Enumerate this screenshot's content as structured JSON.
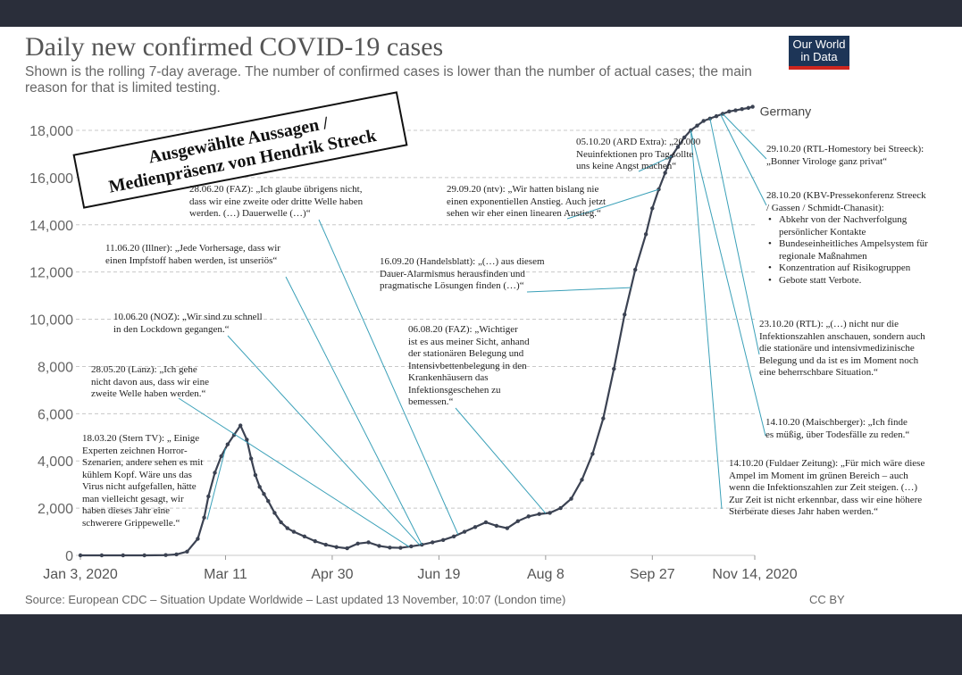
{
  "title": "Daily new confirmed COVID-19 cases",
  "subtitle": "Shown is the rolling 7-day average. The number of confirmed cases is lower than the number of actual cases; the main reason for that is limited testing.",
  "logo": {
    "line1": "Our World",
    "line2": "in Data"
  },
  "stamp": {
    "line1": "Ausgewählte Aussagen /",
    "line2": "Medienpräsenz von Hendrik Streck"
  },
  "source": "Source: European CDC – Situation Update Worldwide – Last updated 13 November, 10:07 (London time)",
  "license": "CC BY",
  "colors": {
    "line": "#3b4252",
    "leader": "#3aa0b8",
    "grid": "#c8c8c8"
  },
  "chart_data": {
    "type": "line",
    "title": "Daily new confirmed COVID-19 cases",
    "series": [
      {
        "name": "Germany",
        "x_days": [
          0,
          10,
          20,
          30,
          40,
          45,
          50,
          55,
          58,
          60,
          63,
          66,
          69,
          72,
          75,
          78,
          80,
          82,
          84,
          86,
          88,
          91,
          94,
          97,
          100,
          105,
          110,
          115,
          120,
          125,
          130,
          135,
          140,
          145,
          150,
          155,
          160,
          165,
          170,
          175,
          180,
          185,
          190,
          195,
          200,
          205,
          210,
          215,
          220,
          225,
          230,
          235,
          240,
          245,
          250,
          255,
          260,
          265,
          268,
          271,
          274,
          277,
          280,
          283,
          286,
          289,
          292,
          295,
          298,
          301,
          304,
          307,
          310,
          313,
          315
        ],
        "values": [
          0,
          0,
          0,
          0,
          10,
          40,
          160,
          700,
          1600,
          2500,
          3500,
          4200,
          4700,
          5100,
          5500,
          4900,
          4100,
          3400,
          2900,
          2600,
          2300,
          1800,
          1400,
          1150,
          1000,
          800,
          600,
          450,
          350,
          300,
          500,
          550,
          400,
          330,
          320,
          380,
          450,
          550,
          650,
          800,
          1000,
          1200,
          1400,
          1250,
          1150,
          1450,
          1650,
          1750,
          1800,
          2000,
          2400,
          3200,
          4300,
          5800,
          7900,
          10200,
          12100,
          13600,
          14700,
          15500,
          16200,
          16900,
          17300,
          17700,
          18000,
          18200,
          18400,
          18500,
          18600,
          18700,
          18800,
          18850,
          18900,
          18950,
          19000
        ]
      }
    ],
    "series_label": "Germany",
    "x_ticks": [
      "Jan 3, 2020",
      "Mar 11",
      "Apr 30",
      "Jun 19",
      "Aug 8",
      "Sep 27",
      "Nov 14, 2020"
    ],
    "x_tick_days": [
      0,
      68,
      118,
      168,
      218,
      268,
      316
    ],
    "y_ticks": [
      "0",
      "2,000",
      "4,000",
      "6,000",
      "8,000",
      "10,000",
      "12,000",
      "14,000",
      "16,000",
      "18,000"
    ],
    "ylim": [
      0,
      18000
    ],
    "xlim_days": [
      0,
      316
    ],
    "annotations": [
      {
        "id": "a1",
        "date_day": 68,
        "lines": [
          "18.03.20 (Stern TV): „ Einige",
          "Experten zeichnen Horror-",
          "Szenarien, andere sehen es mit",
          "kühlem Kopf.  Wäre uns das",
          "Virus nicht aufgefallen, hätte",
          "man vielleicht gesagt, wir",
          "haben dieses Jahr eine",
          "schwerere Grippewelle.“"
        ]
      },
      {
        "id": "a2",
        "date_day": 154,
        "lines": [
          "28.05.20 (Lanz): „Ich gehe",
          "nicht davon aus, dass wir eine",
          "zweite Welle haben werden.“"
        ]
      },
      {
        "id": "a3",
        "date_day": 159,
        "lines": [
          "10.06.20 (NOZ): „Wir sind zu schnell",
          "in den Lockdown gegangen.“"
        ]
      },
      {
        "id": "a4",
        "date_day": 160,
        "lines": [
          "11.06.20 (Illner): „Jede Vorhersage, dass wir",
          "einen Impfstoff haben werden, ist unseriös“"
        ]
      },
      {
        "id": "a5",
        "date_day": 177,
        "lines": [
          "28.06.20 (FAZ): „Ich glaube übrigens nicht,",
          "dass wir eine zweite oder dritte Welle haben",
          "werden. (…) Dauerwelle (…)“"
        ]
      },
      {
        "id": "a6",
        "date_day": 218,
        "lines": [
          "06.08.20 (FAZ): „Wichtiger",
          "ist es aus meiner Sicht, anhand",
          "der stationären Belegung und",
          "Intensivbettenbelegung in den",
          "Krankenhäusern das",
          "Infektionsgeschehen zu",
          "bemessen.“"
        ]
      },
      {
        "id": "a7",
        "date_day": 258,
        "lines": [
          "16.09.20 (Handelsblatt): „(…) aus diesem",
          "Dauer-Alarmismus herausfinden und",
          "pragmatische Lösungen finden (…)“"
        ]
      },
      {
        "id": "a8",
        "date_day": 271,
        "lines": [
          "29.09.20 (ntv): „Wir hatten bislang nie",
          "einen exponentiellen Anstieg.  Auch jetzt",
          "sehen wir eher einen linearen Anstieg.“"
        ]
      },
      {
        "id": "a9",
        "date_day": 277,
        "lines": [
          "05.10.20 (ARD Extra): „20.000",
          "Neuinfektionen pro Tag sollte",
          "uns keine Angst machen“"
        ]
      },
      {
        "id": "a10",
        "date_day": 286,
        "lines": [
          "14.10.20 (Fuldaer Zeitung): „Für mich wäre diese",
          "Ampel im Moment im grünen Bereich – auch",
          "wenn die Infektionszahlen zur Zeit steigen. (…)",
          "Zur Zeit ist nicht erkennbar, dass wir eine höhere",
          "Sterberate dieses Jahr haben werden.“"
        ]
      },
      {
        "id": "a11",
        "date_day": 286,
        "lines": [
          "14.10.20 (Maischberger): „Ich finde",
          "es müßig, über Todesfälle zu reden.“"
        ]
      },
      {
        "id": "a12",
        "date_day": 295,
        "lines": [
          "23.10.20 (RTL): „(…) nicht nur die",
          "Infektionszahlen anschauen, sondern auch",
          "die stationäre und intensivmedizinische",
          "Belegung und da ist es im Moment noch",
          "eine beherrschbare Situation.“"
        ]
      },
      {
        "id": "a13",
        "date_day": 300,
        "lines": [
          "28.10.20 (KBV-Pressekonferenz Streeck",
          "/ Gassen / Schmidt-Chanasit):"
        ],
        "bullets": [
          "Abkehr von der Nachverfolgung persönlicher Kontakte",
          "Bundeseinheitliches Ampelsystem für regionale Maßnahmen",
          "Konzentration auf Risikogruppen",
          "Gebote statt Verbote."
        ]
      },
      {
        "id": "a14",
        "date_day": 301,
        "lines": [
          "29.10.20 (RTL-Homestory bei Streeck):",
          "„Bonner Virologe ganz privat“"
        ]
      }
    ]
  }
}
